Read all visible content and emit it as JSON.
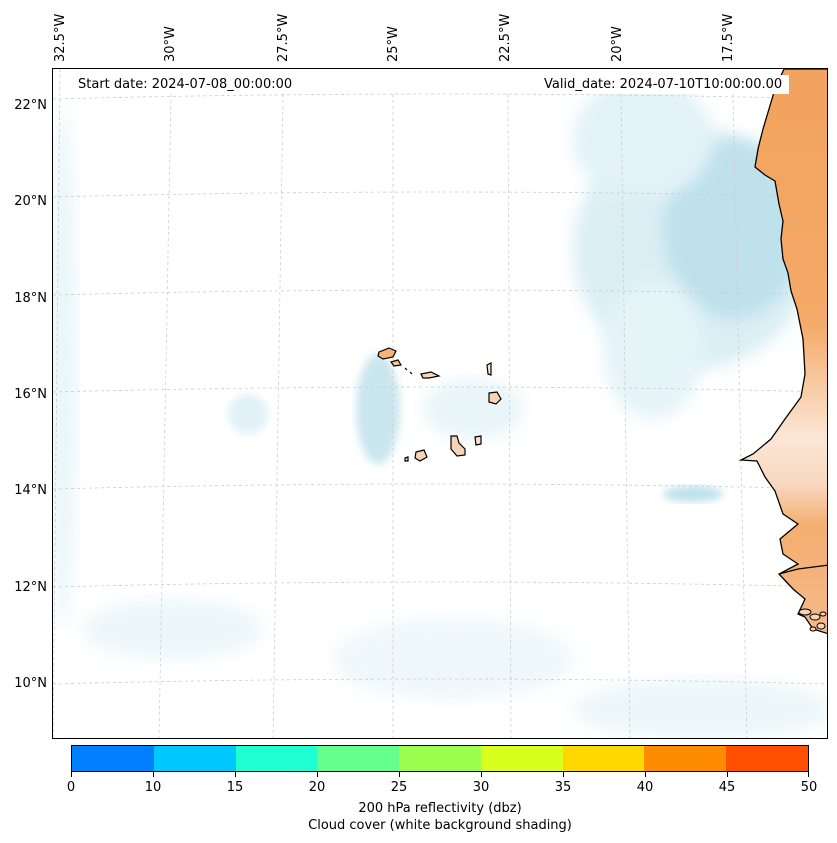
{
  "annotations": {
    "start_date": "Start date: 2024-07-08_00:00:00",
    "valid_date": "Valid_date: 2024-07-10T10:00:00.00"
  },
  "longitude_labels": [
    "32.5°W",
    "30°W",
    "27.5°W",
    "25°W",
    "22.5°W",
    "20°W",
    "17.5°W"
  ],
  "latitude_labels": [
    "22°N",
    "20°N",
    "18°N",
    "16°N",
    "14°N",
    "12°N",
    "10°N"
  ],
  "colorbar": {
    "tick_labels": [
      "0",
      "10",
      "15",
      "20",
      "25",
      "30",
      "35",
      "40",
      "45",
      "50"
    ],
    "colors": [
      "#0080ff",
      "#00c8ff",
      "#1effd2",
      "#64ff8c",
      "#9cff50",
      "#d8ff1e",
      "#ffd800",
      "#ff8c00",
      "#ff5000"
    ],
    "label_line1": "200 hPa reflectivity (dbz)",
    "label_line2": "Cloud cover (white background shading)"
  },
  "colors": {
    "land_high_cloud": "#f2a35d",
    "land_light": "#f8d4b4",
    "cloud_tint": "#bfe2ee",
    "coastline": "#000000",
    "gridline": "#c8c8c8"
  }
}
